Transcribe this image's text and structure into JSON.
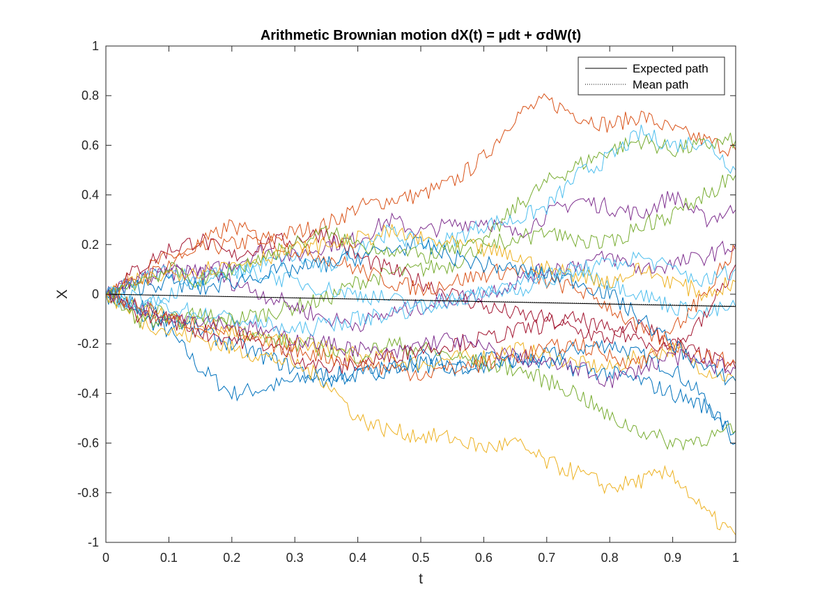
{
  "chart_data": {
    "type": "line",
    "title": "Arithmetic Brownian motion dX(t) = μdt + σdW(t)",
    "xlabel": "t",
    "ylabel": "X",
    "xlim": [
      0,
      1
    ],
    "ylim": [
      -1,
      1
    ],
    "xticks": [
      "0",
      "0.1",
      "0.2",
      "0.3",
      "0.4",
      "0.5",
      "0.6",
      "0.7",
      "0.8",
      "0.9",
      "1"
    ],
    "yticks": [
      "-1",
      "-0.8",
      "-0.6",
      "-0.4",
      "-0.2",
      "0",
      "0.2",
      "0.4",
      "0.6",
      "0.8",
      "1"
    ],
    "grid": false,
    "legend": {
      "placement": "top-right",
      "entries": [
        {
          "label": "Expected path",
          "style": "solid",
          "color": "#000000"
        },
        {
          "label": "Mean path",
          "style": "dotted",
          "color": "#000000"
        }
      ]
    },
    "expected_path": {
      "x": [
        0,
        1
      ],
      "y": [
        0,
        -0.05
      ]
    },
    "mean_path": {
      "x": [
        0,
        1
      ],
      "y": [
        0,
        -0.048
      ]
    },
    "simulated_paths": {
      "count": 20,
      "color_order": [
        "#0072BD",
        "#D95319",
        "#EDB120",
        "#7E2F8E",
        "#77AC30",
        "#4DBEEE",
        "#A2142F"
      ],
      "x": [
        0,
        0.05,
        0.1,
        0.15,
        0.2,
        0.25,
        0.3,
        0.35,
        0.4,
        0.45,
        0.5,
        0.55,
        0.6,
        0.65,
        0.7,
        0.75,
        0.8,
        0.85,
        0.9,
        0.95,
        1.0
      ],
      "series": [
        {
          "y": [
            0,
            -0.08,
            -0.15,
            -0.3,
            -0.4,
            -0.38,
            -0.35,
            -0.32,
            -0.33,
            -0.3,
            -0.28,
            -0.3,
            -0.26,
            -0.28,
            -0.25,
            -0.22,
            -0.2,
            -0.25,
            -0.3,
            -0.42,
            -0.6
          ]
        },
        {
          "y": [
            0,
            0.08,
            0.15,
            0.18,
            0.2,
            0.22,
            0.25,
            0.28,
            0.35,
            0.38,
            0.4,
            0.45,
            0.55,
            0.72,
            0.78,
            0.72,
            0.68,
            0.72,
            0.66,
            0.62,
            0.58
          ]
        },
        {
          "y": [
            0,
            -0.05,
            -0.1,
            -0.12,
            -0.15,
            -0.18,
            -0.2,
            -0.22,
            -0.25,
            -0.26,
            -0.28,
            -0.26,
            -0.25,
            -0.22,
            -0.25,
            -0.28,
            -0.3,
            -0.25,
            -0.22,
            -0.3,
            -0.35
          ]
        },
        {
          "y": [
            0,
            0.05,
            0.1,
            0.08,
            0.12,
            0.18,
            0.15,
            0.2,
            0.22,
            0.3,
            0.25,
            0.28,
            0.3,
            0.24,
            0.32,
            0.38,
            0.35,
            0.32,
            0.4,
            0.3,
            0.34
          ]
        },
        {
          "y": [
            0,
            -0.05,
            -0.08,
            -0.12,
            -0.1,
            -0.08,
            -0.05,
            -0.02,
            0.05,
            0.08,
            0.1,
            0.12,
            0.2,
            0.35,
            0.45,
            0.52,
            0.58,
            0.62,
            0.58,
            0.6,
            0.62
          ]
        },
        {
          "y": [
            0,
            0.05,
            0.1,
            0.05,
            0.08,
            0.12,
            0.15,
            0.1,
            0.2,
            0.25,
            0.2,
            0.22,
            0.28,
            0.3,
            0.35,
            0.48,
            0.55,
            0.65,
            0.6,
            0.62,
            0.5
          ]
        },
        {
          "y": [
            0,
            0.1,
            0.18,
            0.22,
            0.15,
            0.2,
            0.22,
            0.25,
            0.15,
            0.1,
            0.05,
            0.0,
            -0.05,
            -0.08,
            -0.1,
            -0.15,
            -0.18,
            -0.12,
            -0.2,
            -0.25,
            -0.3
          ]
        },
        {
          "y": [
            0,
            -0.05,
            -0.1,
            -0.15,
            -0.2,
            -0.25,
            -0.3,
            -0.35,
            -0.32,
            -0.3,
            -0.25,
            -0.28,
            -0.3,
            -0.26,
            -0.28,
            -0.3,
            -0.32,
            -0.35,
            -0.4,
            -0.45,
            -0.55
          ]
        },
        {
          "y": [
            0,
            0.05,
            0.12,
            0.2,
            0.28,
            0.22,
            0.18,
            0.15,
            0.1,
            0.05,
            0.02,
            0.05,
            0.08,
            0.1,
            0.05,
            0.02,
            -0.05,
            -0.15,
            -0.2,
            -0.25,
            -0.28
          ]
        },
        {
          "y": [
            0,
            -0.1,
            -0.15,
            -0.18,
            -0.22,
            -0.25,
            -0.28,
            -0.35,
            -0.5,
            -0.55,
            -0.57,
            -0.58,
            -0.62,
            -0.6,
            -0.68,
            -0.72,
            -0.78,
            -0.75,
            -0.72,
            -0.88,
            -0.97
          ]
        },
        {
          "y": [
            0,
            0.05,
            0.08,
            0.1,
            0.05,
            0.0,
            -0.05,
            -0.1,
            -0.12,
            -0.08,
            -0.05,
            -0.02,
            0.0,
            0.05,
            0.1,
            0.12,
            0.15,
            0.1,
            0.12,
            0.15,
            0.2
          ]
        },
        {
          "y": [
            0,
            -0.1,
            -0.12,
            -0.08,
            -0.12,
            -0.18,
            -0.2,
            -0.22,
            -0.25,
            -0.2,
            -0.22,
            -0.25,
            -0.28,
            -0.3,
            -0.35,
            -0.4,
            -0.5,
            -0.55,
            -0.6,
            -0.58,
            -0.55
          ]
        },
        {
          "y": [
            0,
            -0.05,
            0.0,
            0.05,
            0.1,
            0.08,
            0.05,
            0.02,
            0.0,
            -0.02,
            -0.05,
            -0.02,
            0.0,
            0.05,
            0.08,
            0.1,
            0.05,
            0.0,
            -0.05,
            -0.08,
            -0.05
          ]
        },
        {
          "y": [
            0,
            -0.08,
            -0.1,
            -0.15,
            -0.18,
            -0.2,
            -0.25,
            -0.3,
            -0.28,
            -0.25,
            -0.22,
            -0.2,
            -0.18,
            -0.15,
            -0.12,
            -0.1,
            -0.15,
            -0.18,
            -0.22,
            -0.1,
            0.12
          ]
        },
        {
          "y": [
            0,
            0.03,
            0.05,
            0.02,
            0.05,
            0.08,
            0.1,
            0.12,
            0.15,
            0.18,
            0.2,
            0.15,
            0.12,
            0.1,
            0.08,
            0.05,
            0.0,
            -0.1,
            -0.2,
            -0.3,
            -0.35
          ]
        },
        {
          "y": [
            0,
            -0.05,
            -0.1,
            -0.12,
            -0.15,
            -0.2,
            -0.22,
            -0.25,
            -0.28,
            -0.3,
            -0.32,
            -0.3,
            -0.28,
            -0.25,
            -0.22,
            -0.2,
            -0.25,
            -0.28,
            -0.15,
            0.0,
            0.18
          ]
        },
        {
          "y": [
            0,
            0.05,
            0.08,
            0.1,
            0.12,
            0.15,
            0.18,
            0.2,
            0.22,
            0.25,
            0.22,
            0.2,
            0.18,
            0.15,
            0.1,
            0.08,
            0.05,
            0.1,
            0.05,
            0.0,
            0.05
          ]
        },
        {
          "y": [
            0,
            -0.05,
            -0.08,
            -0.1,
            -0.12,
            -0.15,
            -0.18,
            -0.2,
            -0.22,
            -0.25,
            -0.2,
            -0.18,
            -0.22,
            -0.25,
            -0.28,
            -0.3,
            -0.35,
            -0.3,
            -0.25,
            -0.28,
            -0.3
          ]
        },
        {
          "y": [
            0,
            0.05,
            0.1,
            0.05,
            0.1,
            0.15,
            0.2,
            0.25,
            0.2,
            0.18,
            0.15,
            0.18,
            0.2,
            0.22,
            0.25,
            0.22,
            0.2,
            0.28,
            0.32,
            0.4,
            0.48
          ]
        },
        {
          "y": [
            0,
            -0.02,
            -0.05,
            -0.08,
            -0.1,
            -0.12,
            -0.15,
            -0.12,
            -0.1,
            -0.08,
            -0.05,
            -0.02,
            0.0,
            0.02,
            0.05,
            0.1,
            0.12,
            0.15,
            0.1,
            0.05,
            0.1
          ]
        }
      ]
    }
  }
}
